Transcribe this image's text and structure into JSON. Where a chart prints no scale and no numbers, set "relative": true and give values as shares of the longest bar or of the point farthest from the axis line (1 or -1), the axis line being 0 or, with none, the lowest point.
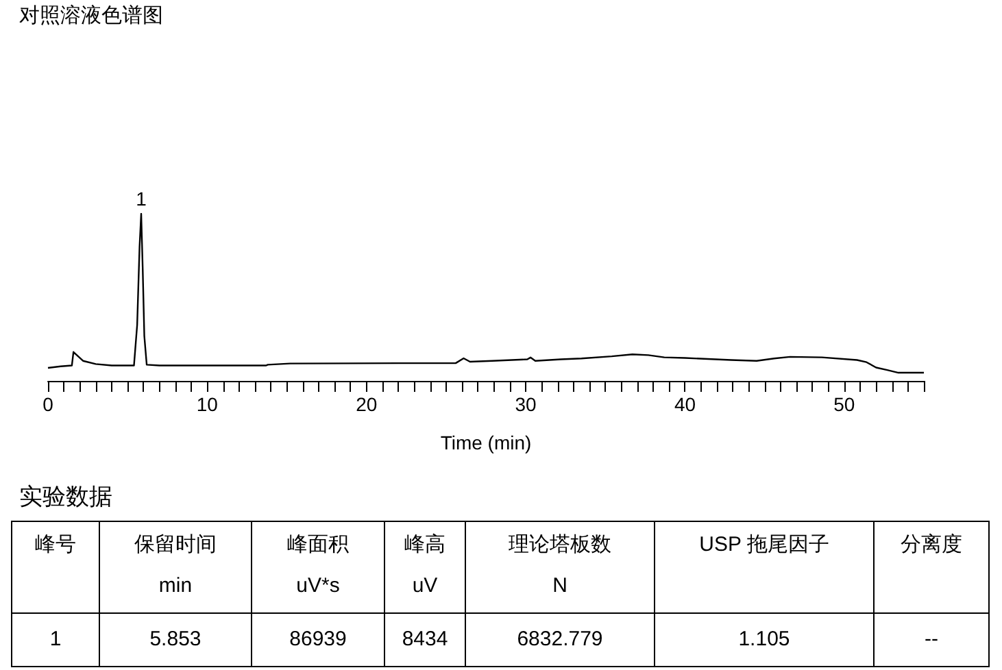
{
  "chart_data": {
    "type": "line",
    "relative": true,
    "title": "对照溶液色谱图",
    "xlabel": "Time (min)",
    "x": [
      0,
      0.8,
      1.5,
      1.6,
      2.2,
      3,
      4,
      5.4,
      5.6,
      5.75,
      5.853,
      5.95,
      6.05,
      6.2,
      7,
      13.7,
      13.8,
      15.2,
      22,
      25.6,
      26.1,
      26.5,
      27.9,
      30.1,
      30.3,
      30.6,
      32.2,
      33.5,
      35.4,
      36.7,
      37.7,
      38.7,
      40,
      42.9,
      44.5,
      45.6,
      46.6,
      48.6,
      50.8,
      51.4,
      52,
      52.7,
      53.4,
      55
    ],
    "series": [
      {
        "color": "#000000",
        "values": [
          0.078,
          0.087,
          0.092,
          0.173,
          0.12,
          0.101,
          0.092,
          0.092,
          0.334,
          0.8,
          1,
          0.667,
          0.268,
          0.097,
          0.092,
          0.092,
          0.097,
          0.104,
          0.106,
          0.106,
          0.135,
          0.115,
          0.12,
          0.129,
          0.14,
          0.12,
          0.129,
          0.134,
          0.147,
          0.159,
          0.154,
          0.141,
          0.137,
          0.125,
          0.12,
          0.134,
          0.144,
          0.141,
          0.125,
          0.112,
          0.08,
          0.065,
          0.049,
          0.049
        ]
      }
    ],
    "xlim": [
      0,
      55
    ],
    "xticks": [
      0,
      {
        "value": 1,
        "label": null
      },
      {
        "value": 2,
        "label": null
      },
      {
        "value": 3,
        "label": null
      },
      {
        "value": 4,
        "label": null
      },
      {
        "value": 5,
        "label": null
      },
      {
        "value": 6,
        "label": null
      },
      {
        "value": 7,
        "label": null
      },
      {
        "value": 8,
        "label": null
      },
      {
        "value": 9,
        "label": null
      },
      10,
      {
        "value": 11,
        "label": null
      },
      {
        "value": 12,
        "label": null
      },
      {
        "value": 13,
        "label": null
      },
      {
        "value": 14,
        "label": null
      },
      {
        "value": 15,
        "label": null
      },
      {
        "value": 16,
        "label": null
      },
      {
        "value": 17,
        "label": null
      },
      {
        "value": 18,
        "label": null
      },
      {
        "value": 19,
        "label": null
      },
      20,
      {
        "value": 21,
        "label": null
      },
      {
        "value": 22,
        "label": null
      },
      {
        "value": 23,
        "label": null
      },
      {
        "value": 24,
        "label": null
      },
      {
        "value": 25,
        "label": null
      },
      {
        "value": 26,
        "label": null
      },
      {
        "value": 27,
        "label": null
      },
      {
        "value": 28,
        "label": null
      },
      {
        "value": 29,
        "label": null
      },
      30,
      {
        "value": 31,
        "label": null
      },
      {
        "value": 32,
        "label": null
      },
      {
        "value": 33,
        "label": null
      },
      {
        "value": 34,
        "label": null
      },
      {
        "value": 35,
        "label": null
      },
      {
        "value": 36,
        "label": null
      },
      {
        "value": 37,
        "label": null
      },
      {
        "value": 38,
        "label": null
      },
      {
        "value": 39,
        "label": null
      },
      40,
      {
        "value": 41,
        "label": null
      },
      {
        "value": 42,
        "label": null
      },
      {
        "value": 43,
        "label": null
      },
      {
        "value": 44,
        "label": null
      },
      {
        "value": 45,
        "label": null
      },
      {
        "value": 46,
        "label": null
      },
      {
        "value": 47,
        "label": null
      },
      {
        "value": 48,
        "label": null
      },
      {
        "value": 49,
        "label": null
      },
      50,
      {
        "value": 51,
        "label": null
      },
      {
        "value": 52,
        "label": null
      },
      {
        "value": 53,
        "label": null
      },
      {
        "value": 54,
        "label": null
      },
      {
        "value": 55,
        "label": null
      }
    ],
    "grid": false,
    "annotations": [
      {
        "text": "1",
        "x": 5.853,
        "y": 1
      },
      "实验数据",
      "峰号",
      "保留时间\nmin",
      "峰面积\nuV*s",
      "峰高\nuV",
      "理论塔板数\nN",
      "USP 拖尾因子",
      "分离度",
      "1",
      "5.853",
      "86939",
      "8434",
      "6832.779",
      "1.105",
      "--"
    ]
  }
}
